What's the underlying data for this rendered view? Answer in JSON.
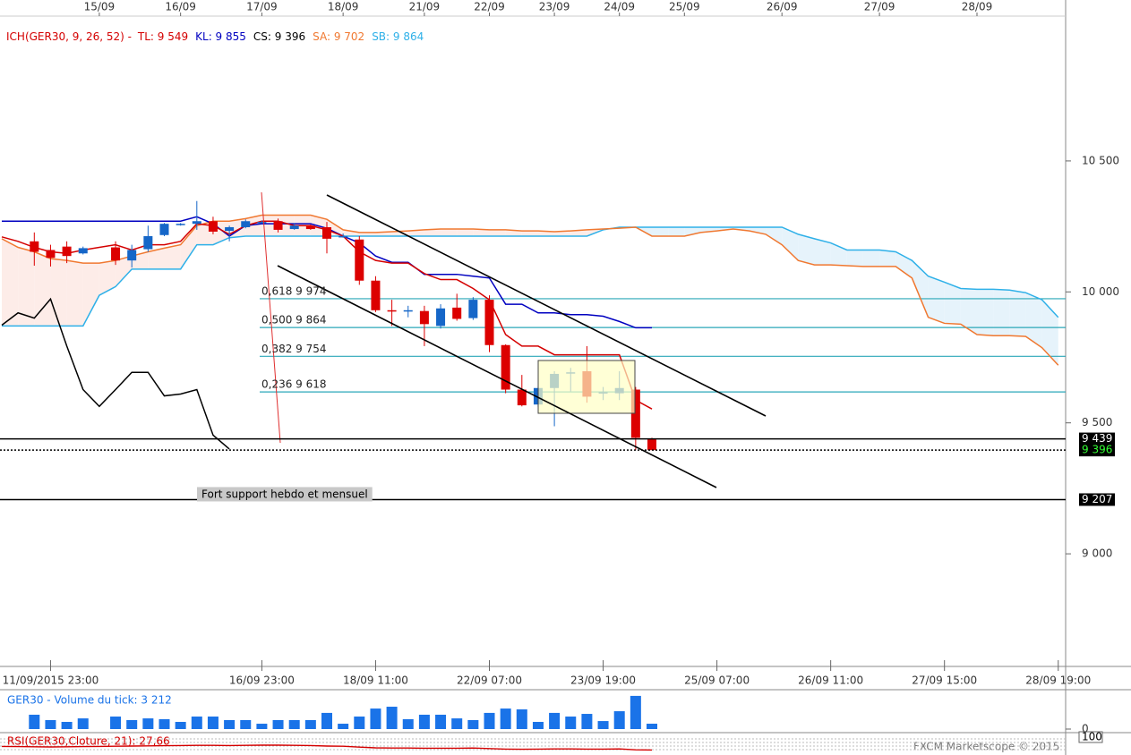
{
  "chart_data": [
    {
      "type": "candlestick",
      "legend": [
        {
          "text": "ICH(GER30, 9, 26, 52) -",
          "color": "#d40000"
        },
        {
          "text": "TL: 9 549",
          "color": "#d40000"
        },
        {
          "text": "KL: 9 855",
          "color": "#0000c0"
        },
        {
          "text": "CS: 9 396",
          "color": "#000000"
        },
        {
          "text": "SA: 9 702",
          "color": "#f07830"
        },
        {
          "text": "SB: 9 864",
          "color": "#2eb0e8"
        }
      ],
      "top_categories": [
        null,
        null,
        null,
        null,
        null,
        null,
        "15/09",
        null,
        null,
        null,
        null,
        "16/09",
        null,
        null,
        null,
        null,
        "17/09",
        null,
        null,
        null,
        null,
        "18/09",
        null,
        null,
        null,
        null,
        "21/09",
        null,
        null,
        null,
        "22/09",
        null,
        null,
        null,
        "23/09",
        null,
        null,
        null,
        "24/09",
        null,
        null,
        null,
        "25/09",
        null,
        null,
        null,
        null,
        null,
        "26/09",
        null,
        null,
        null,
        null,
        null,
        "27/09",
        null,
        null,
        null,
        null,
        null,
        "28/09",
        null,
        null,
        null,
        null,
        null
      ],
      "categories": [
        null,
        null,
        null,
        "11/09/2015 23:00",
        null,
        null,
        null,
        null,
        null,
        null,
        null,
        null,
        null,
        null,
        null,
        null,
        "16/09 23:00",
        null,
        null,
        null,
        null,
        null,
        null,
        "18/09 11:00",
        null,
        null,
        null,
        null,
        null,
        null,
        "22/09 07:00",
        null,
        null,
        null,
        null,
        null,
        null,
        "23/09 19:00",
        null,
        null,
        null,
        null,
        null,
        null,
        "25/09 07:00",
        null,
        null,
        null,
        null,
        null,
        null,
        "26/09 11:00",
        null,
        null,
        null,
        null,
        null,
        null,
        "27/09 15:00",
        null,
        null,
        null,
        null,
        null,
        null,
        "28/09 19:00"
      ],
      "open": [
        null,
        null,
        10193,
        10160,
        10173,
        10147,
        null,
        10170,
        10120,
        10163,
        10217,
        10257,
        10260,
        10270,
        10233,
        10247,
        10263,
        10270,
        10240,
        10253,
        10247,
        10210,
        10200,
        10043,
        9930,
        9927,
        9927,
        9870,
        9940,
        9900,
        9970,
        9797,
        9627,
        9570,
        9633,
        9690,
        9697,
        9613,
        9613,
        9627,
        9440,
        null,
        null,
        null,
        null,
        null,
        null,
        null,
        null,
        null,
        null,
        null,
        null,
        null,
        null,
        null,
        null,
        null,
        null,
        null,
        null,
        null,
        null,
        null,
        null,
        null
      ],
      "high": [
        null,
        null,
        10227,
        10180,
        10193,
        10173,
        null,
        10193,
        10180,
        10253,
        10263,
        10263,
        10347,
        10287,
        10253,
        10277,
        10273,
        10280,
        10263,
        10257,
        10267,
        10223,
        10213,
        10060,
        9970,
        9947,
        9947,
        9953,
        9993,
        9980,
        9987,
        9800,
        9683,
        9640,
        9697,
        9710,
        9793,
        9637,
        9697,
        9637,
        9443,
        null,
        null,
        null,
        null,
        null,
        null,
        null,
        null,
        null,
        null,
        null,
        null,
        null,
        null,
        null,
        null,
        null,
        null,
        null,
        null,
        null,
        null,
        null,
        null,
        null
      ],
      "low": [
        null,
        null,
        10100,
        10097,
        10110,
        10143,
        null,
        10103,
        10093,
        10153,
        10213,
        10253,
        10237,
        10220,
        10193,
        10243,
        10263,
        10227,
        10237,
        10237,
        10147,
        10207,
        10027,
        9923,
        9870,
        9903,
        9793,
        9860,
        9890,
        9893,
        9770,
        9613,
        9563,
        9560,
        9487,
        9620,
        9577,
        9587,
        9587,
        9397,
        9396,
        null,
        null,
        null,
        null,
        null,
        null,
        null,
        null,
        null,
        null,
        null,
        null,
        null,
        null,
        null,
        null,
        null,
        null,
        null,
        null,
        null,
        null,
        null,
        null,
        null
      ],
      "close": [
        null,
        null,
        10153,
        10130,
        10137,
        10167,
        null,
        10120,
        10160,
        10213,
        10260,
        10260,
        10270,
        10230,
        10247,
        10270,
        10267,
        10237,
        10253,
        10240,
        10203,
        10213,
        10043,
        9930,
        9927,
        9930,
        9877,
        9937,
        9897,
        9970,
        9797,
        9627,
        9567,
        9633,
        9687,
        9693,
        9600,
        9617,
        9633,
        9443,
        9396,
        null,
        null,
        null,
        null,
        null,
        null,
        null,
        null,
        null,
        null,
        null,
        null,
        null,
        null,
        null,
        null,
        null,
        null,
        null,
        null,
        null,
        null,
        null,
        null,
        null
      ],
      "up_color": "#1566c8",
      "down_color": "#dc0000",
      "lines": [
        {
          "color": "#2eb0e8",
          "values": [
            9870,
            9870,
            9870,
            9870,
            9870,
            9870,
            9987,
            10020,
            10087,
            10087,
            10087,
            10087,
            10180,
            10180,
            10207,
            10213,
            10213,
            10213,
            10213,
            10213,
            10213,
            10213,
            10213,
            10213,
            10213,
            10213,
            10213,
            10213,
            10213,
            10213,
            10213,
            10213,
            10213,
            10213,
            10213,
            10213,
            10213,
            10237,
            10247,
            10247,
            10247,
            10247,
            10247,
            10247,
            10247,
            10247,
            10247,
            10247,
            10247,
            10220,
            10203,
            10187,
            10160,
            10160,
            10160,
            10153,
            10120,
            10060,
            10037,
            10013,
            10010,
            10010,
            10007,
            9997,
            9970,
            9903
          ]
        },
        {
          "color": "#f07830",
          "values": [
            10203,
            10170,
            10153,
            10127,
            10120,
            10110,
            10110,
            10120,
            10137,
            10153,
            10167,
            10180,
            10253,
            10270,
            10270,
            10280,
            10293,
            10293,
            10293,
            10293,
            10277,
            10237,
            10227,
            10227,
            10230,
            10233,
            10237,
            10240,
            10240,
            10240,
            10237,
            10237,
            10233,
            10233,
            10230,
            10233,
            10237,
            10240,
            10243,
            10247,
            10213,
            10213,
            10213,
            10227,
            10233,
            10240,
            10233,
            10220,
            10180,
            10120,
            10103,
            10103,
            10100,
            10097,
            10097,
            10097,
            10053,
            9903,
            9880,
            9877,
            9837,
            9833,
            9833,
            9830,
            9787,
            9720
          ]
        },
        {
          "color": "#0000c0",
          "values": [
            10270,
            10270,
            10270,
            10270,
            10270,
            10270,
            10270,
            10270,
            10270,
            10270,
            10270,
            10270,
            10287,
            10260,
            10213,
            10253,
            10260,
            10260,
            10260,
            10260,
            10243,
            10213,
            10187,
            10137,
            10113,
            10113,
            10067,
            10067,
            10067,
            10060,
            10053,
            9953,
            9953,
            9920,
            9920,
            9913,
            9913,
            9907,
            9887,
            9863,
            9863,
            null,
            null,
            null,
            null,
            null,
            null,
            null,
            null,
            null,
            null,
            null,
            null,
            null,
            null,
            null,
            null,
            null,
            null,
            null,
            null,
            null,
            null,
            null,
            null,
            null
          ]
        },
        {
          "color": "#d40000",
          "values": [
            10210,
            10193,
            10170,
            10153,
            10147,
            10160,
            10170,
            10180,
            10160,
            10180,
            10180,
            10193,
            10260,
            10253,
            10220,
            10253,
            10270,
            10270,
            10253,
            10253,
            10237,
            10213,
            10153,
            10120,
            10110,
            10110,
            10070,
            10047,
            10047,
            10013,
            9970,
            9837,
            9793,
            9793,
            9760,
            9760,
            9760,
            9760,
            9760,
            9587,
            9553,
            null,
            null,
            null,
            null,
            null,
            null,
            null,
            null,
            null,
            null,
            null,
            null,
            null,
            null,
            null,
            null,
            null,
            null,
            null,
            null,
            null,
            null,
            null,
            null,
            null
          ]
        },
        {
          "color": "#000000",
          "values": [
            9873,
            9920,
            9900,
            9973,
            9793,
            9627,
            9563,
            9627,
            9693,
            9693,
            9603,
            9610,
            9627,
            9453,
            9400,
            null,
            null,
            null,
            null,
            null,
            null,
            null,
            null,
            null,
            null,
            null,
            null,
            null,
            null,
            null,
            null,
            null,
            null,
            null,
            null,
            null,
            null,
            null,
            null,
            null,
            null,
            null,
            null,
            null,
            null,
            null,
            null,
            null,
            null,
            null,
            null,
            null,
            null,
            null,
            null,
            null,
            null,
            null,
            null,
            null,
            null,
            null,
            null,
            null,
            null,
            null
          ]
        }
      ],
      "cloud_colors": [
        "#e6f3fb",
        "#fdece8"
      ],
      "ylim": [
        8570,
        11053
      ],
      "yticks": [
        {
          "value": 9000,
          "label": "9 000"
        },
        {
          "value": 9500,
          "label": "9 500"
        },
        {
          "value": 10000,
          "label": "10 000"
        },
        {
          "value": 10500,
          "label": "10 500"
        }
      ],
      "fib_color": "#2aa7b8",
      "levels": [
        {
          "value": 9974,
          "label": "0,618 9 974"
        },
        {
          "value": 9864,
          "label": "0,500 9 864"
        },
        {
          "value": 9754,
          "label": "0,382 9 754"
        },
        {
          "value": 9618,
          "label": "0,236 9 618"
        }
      ],
      "hlines": [
        {
          "value": 9439,
          "label": "9 439",
          "style": "solid",
          "label_color": "#ffffff"
        },
        {
          "value": 9396,
          "label": "9 396",
          "style": "dotted",
          "label_color": "#33ff33"
        },
        {
          "value": 9207,
          "label": "9 207",
          "style": "solid",
          "label_color": "#ffffff"
        }
      ],
      "annotation": "Fort support hebdo et mensuel",
      "watermark": "FXCM Marketscope © 2015"
    },
    {
      "type": "bar",
      "title": "GER30 - Volume du tick: 3 212",
      "color": "#1a73e8",
      "values": [
        null,
        null,
        8600,
        5400,
        4300,
        6400,
        null,
        7500,
        5400,
        6400,
        5900,
        4300,
        7500,
        7500,
        5400,
        5400,
        3200,
        5400,
        5400,
        5400,
        9700,
        3200,
        7500,
        12300,
        13400,
        5900,
        8600,
        8600,
        6400,
        5400,
        9700,
        12300,
        11800,
        4300,
        9700,
        7500,
        9100,
        4800,
        10700,
        19900,
        3212,
        null,
        null,
        null,
        null,
        null,
        null,
        null,
        null,
        null,
        null,
        null,
        null,
        null,
        null,
        null,
        null,
        null,
        null,
        null,
        null,
        null,
        null,
        null,
        null,
        null
      ],
      "ylim": [
        0,
        22000
      ],
      "yticks": [
        0
      ]
    },
    {
      "type": "line",
      "title": "RSI(GER30,Cloture, 21): 27,66",
      "color": "#d40000",
      "values": [
        48,
        47,
        46,
        45,
        46,
        47,
        48,
        49,
        50,
        51,
        52,
        53,
        54,
        54,
        53,
        54,
        55,
        55,
        54,
        53,
        50,
        49,
        44,
        40,
        39,
        39,
        38,
        38,
        38,
        39,
        36,
        33,
        32,
        33,
        34,
        34,
        33,
        33,
        34,
        29,
        27.66,
        null,
        null,
        null,
        null,
        null,
        null,
        null,
        null,
        null,
        null,
        null,
        null,
        null,
        null,
        null,
        null,
        null,
        null,
        null,
        null,
        null,
        null,
        null,
        null,
        null
      ],
      "ylim": [
        0,
        100
      ],
      "yticks": [
        100
      ]
    }
  ]
}
